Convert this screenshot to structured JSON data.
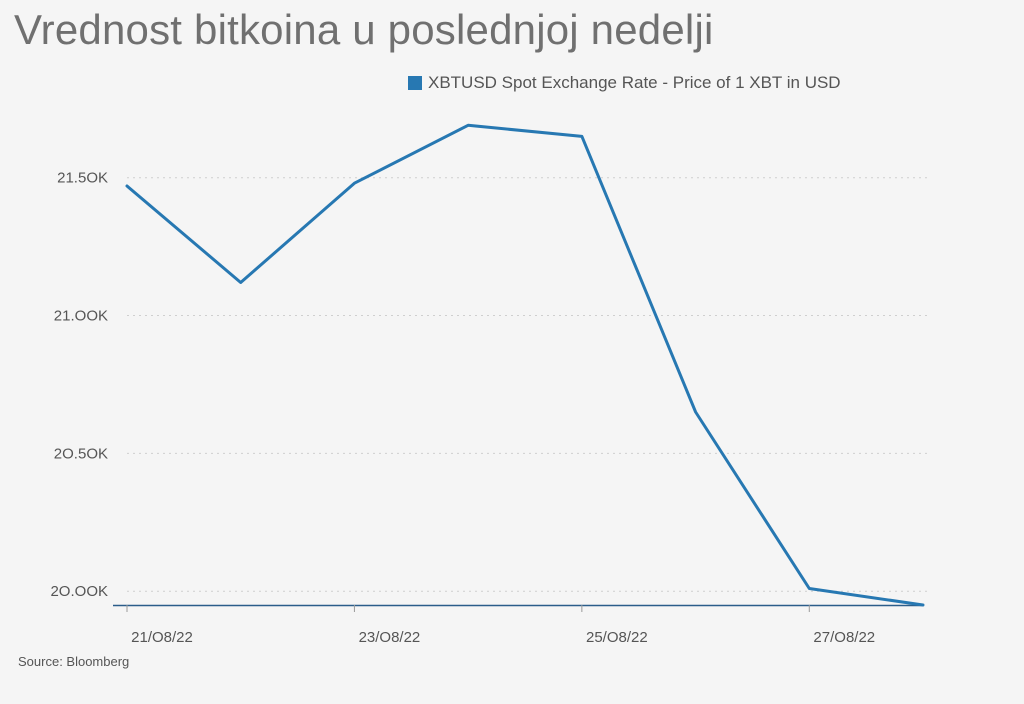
{
  "chart_data": {
    "type": "line",
    "title": "Vrednost bitkoina u poslednjoj nedelji",
    "xlabel": "",
    "ylabel": "",
    "x": [
      "21/08/22",
      "22/08/22",
      "23/08/22",
      "24/08/22",
      "25/08/22",
      "26/08/22",
      "27/08/22",
      "28/08/22"
    ],
    "series": [
      {
        "name": "XBTUSD Spot Exchange Rate - Price of 1 XBT in USD",
        "color": "#2778b2",
        "values": [
          21470,
          21120,
          21480,
          21690,
          21650,
          20650,
          20010,
          19950
        ]
      }
    ],
    "ylim": [
      19950,
      21800
    ],
    "yticks": [
      20000,
      20500,
      21000,
      21500
    ],
    "ytick_labels": [
      "2O.OOK",
      "2O.5OK",
      "21.OOK",
      "21.5OK"
    ],
    "xtick_labels": [
      "21/O8/22",
      "23/O8/22",
      "25/O8/22",
      "27/O8/22"
    ],
    "grid": "horizontal-dotted",
    "legend_position": "top"
  },
  "source": "Source: Bloomberg",
  "legend_swatch_color": "#2778b2",
  "axis_color": "#2b5d8a",
  "grid_color": "#cfcfcf"
}
